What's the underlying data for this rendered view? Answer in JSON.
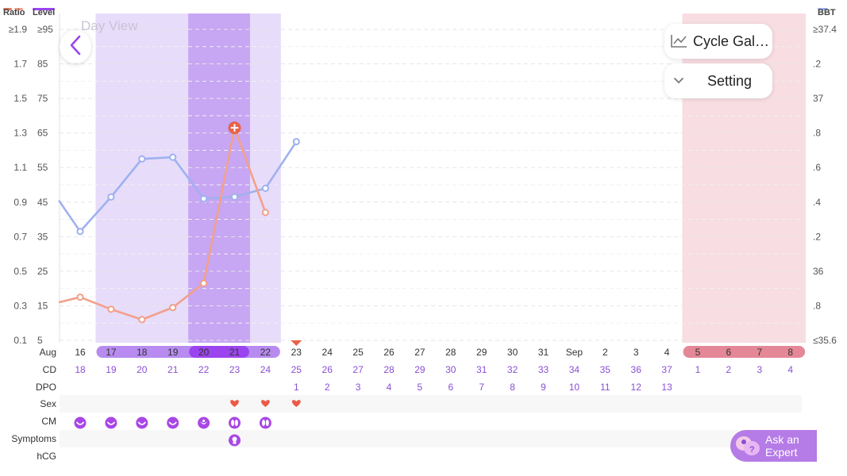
{
  "header": {
    "ratio_label": "Ratio",
    "level_label": "Level",
    "bbt_label": "BBT",
    "view_label": "Day View"
  },
  "buttons": {
    "cycle_gallery": "Cycle Gal…",
    "setting": "Setting",
    "ask_expert_line1": "Ask an",
    "ask_expert_line2": "Expert"
  },
  "row_labels": {
    "month": "Aug",
    "cd": "CD",
    "dpo": "DPO",
    "sex": "Sex",
    "cm": "CM",
    "symptoms": "Symptoms",
    "hcg": "hCG"
  },
  "chart_data": {
    "type": "line",
    "left_axis_ratio_ticks": [
      "≥1.9",
      "1.7",
      "1.5",
      "1.3",
      "1.1",
      "0.9",
      "0.7",
      "0.5",
      "0.3",
      "0.1"
    ],
    "left_axis_level_ticks": [
      "≥95",
      "85",
      "75",
      "65",
      "55",
      "45",
      "35",
      "25",
      "15",
      "5"
    ],
    "right_axis_bbt_ticks": [
      "≥37.4",
      ".2",
      "37",
      ".8",
      ".6",
      ".4",
      ".2",
      "36",
      ".8",
      "≤35.6"
    ],
    "dates": [
      "16",
      "17",
      "18",
      "19",
      "20",
      "21",
      "22",
      "23",
      "24",
      "25",
      "26",
      "27",
      "28",
      "29",
      "30",
      "31",
      "Sep",
      "2",
      "3",
      "4",
      "5",
      "6",
      "7",
      "8"
    ],
    "cycle_days": [
      "18",
      "19",
      "20",
      "21",
      "22",
      "23",
      "24",
      "25",
      "26",
      "27",
      "28",
      "29",
      "30",
      "31",
      "32",
      "33",
      "34",
      "35",
      "36",
      "37",
      "1",
      "2",
      "3",
      "4"
    ],
    "dpo": [
      "",
      "",
      "",
      "",
      "",
      "",
      "",
      "1",
      "2",
      "3",
      "4",
      "5",
      "6",
      "7",
      "8",
      "9",
      "10",
      "11",
      "12",
      "13",
      "",
      "",
      "",
      ""
    ],
    "fertile_window": [
      "17",
      "18",
      "19",
      "20",
      "21",
      "22"
    ],
    "peak_days": [
      "20",
      "21"
    ],
    "ovulation_day": "23",
    "period_days": [
      "5",
      "6",
      "7",
      "8"
    ],
    "sex_days": [
      "21",
      "22",
      "23"
    ],
    "cm_days": [
      "16",
      "17",
      "18",
      "19",
      "20",
      "21",
      "22"
    ],
    "cm_types": [
      "creamy",
      "creamy",
      "creamy",
      "creamy",
      "sticky",
      "egg-white",
      "egg-white"
    ],
    "symptom_days": [
      "21"
    ],
    "series": [
      {
        "kind": "level",
        "color": "#9fb1ef",
        "points": [
          [
            "15",
            45.5
          ],
          [
            "16",
            36.5
          ],
          [
            "17",
            46.5
          ],
          [
            "18",
            57.5
          ],
          [
            "19",
            58
          ],
          [
            "20",
            46
          ],
          [
            "21",
            46.5
          ],
          [
            "22",
            49
          ],
          [
            "23",
            62.5
          ]
        ]
      },
      {
        "kind": "ratio",
        "color": "#f2a08b",
        "peak_marker_day": "21",
        "points": [
          [
            "15",
            0.32
          ],
          [
            "16",
            0.35
          ],
          [
            "17",
            0.28
          ],
          [
            "18",
            0.22
          ],
          [
            "19",
            0.29
          ],
          [
            "20",
            0.43
          ],
          [
            "21",
            1.33
          ],
          [
            "22",
            0.84
          ]
        ]
      }
    ],
    "colors": {
      "fertile": "#e7dcfa",
      "peak": "#c7a6f3",
      "pill_fertile": "#b78bf0",
      "pill_peak": "#9b45ee",
      "period_bg": "#f8dde2",
      "period_pill": "#e48796",
      "ovulation_marker": "#e7634a",
      "heart": "#ee5a45",
      "cm_icon": "#a947e6"
    }
  }
}
